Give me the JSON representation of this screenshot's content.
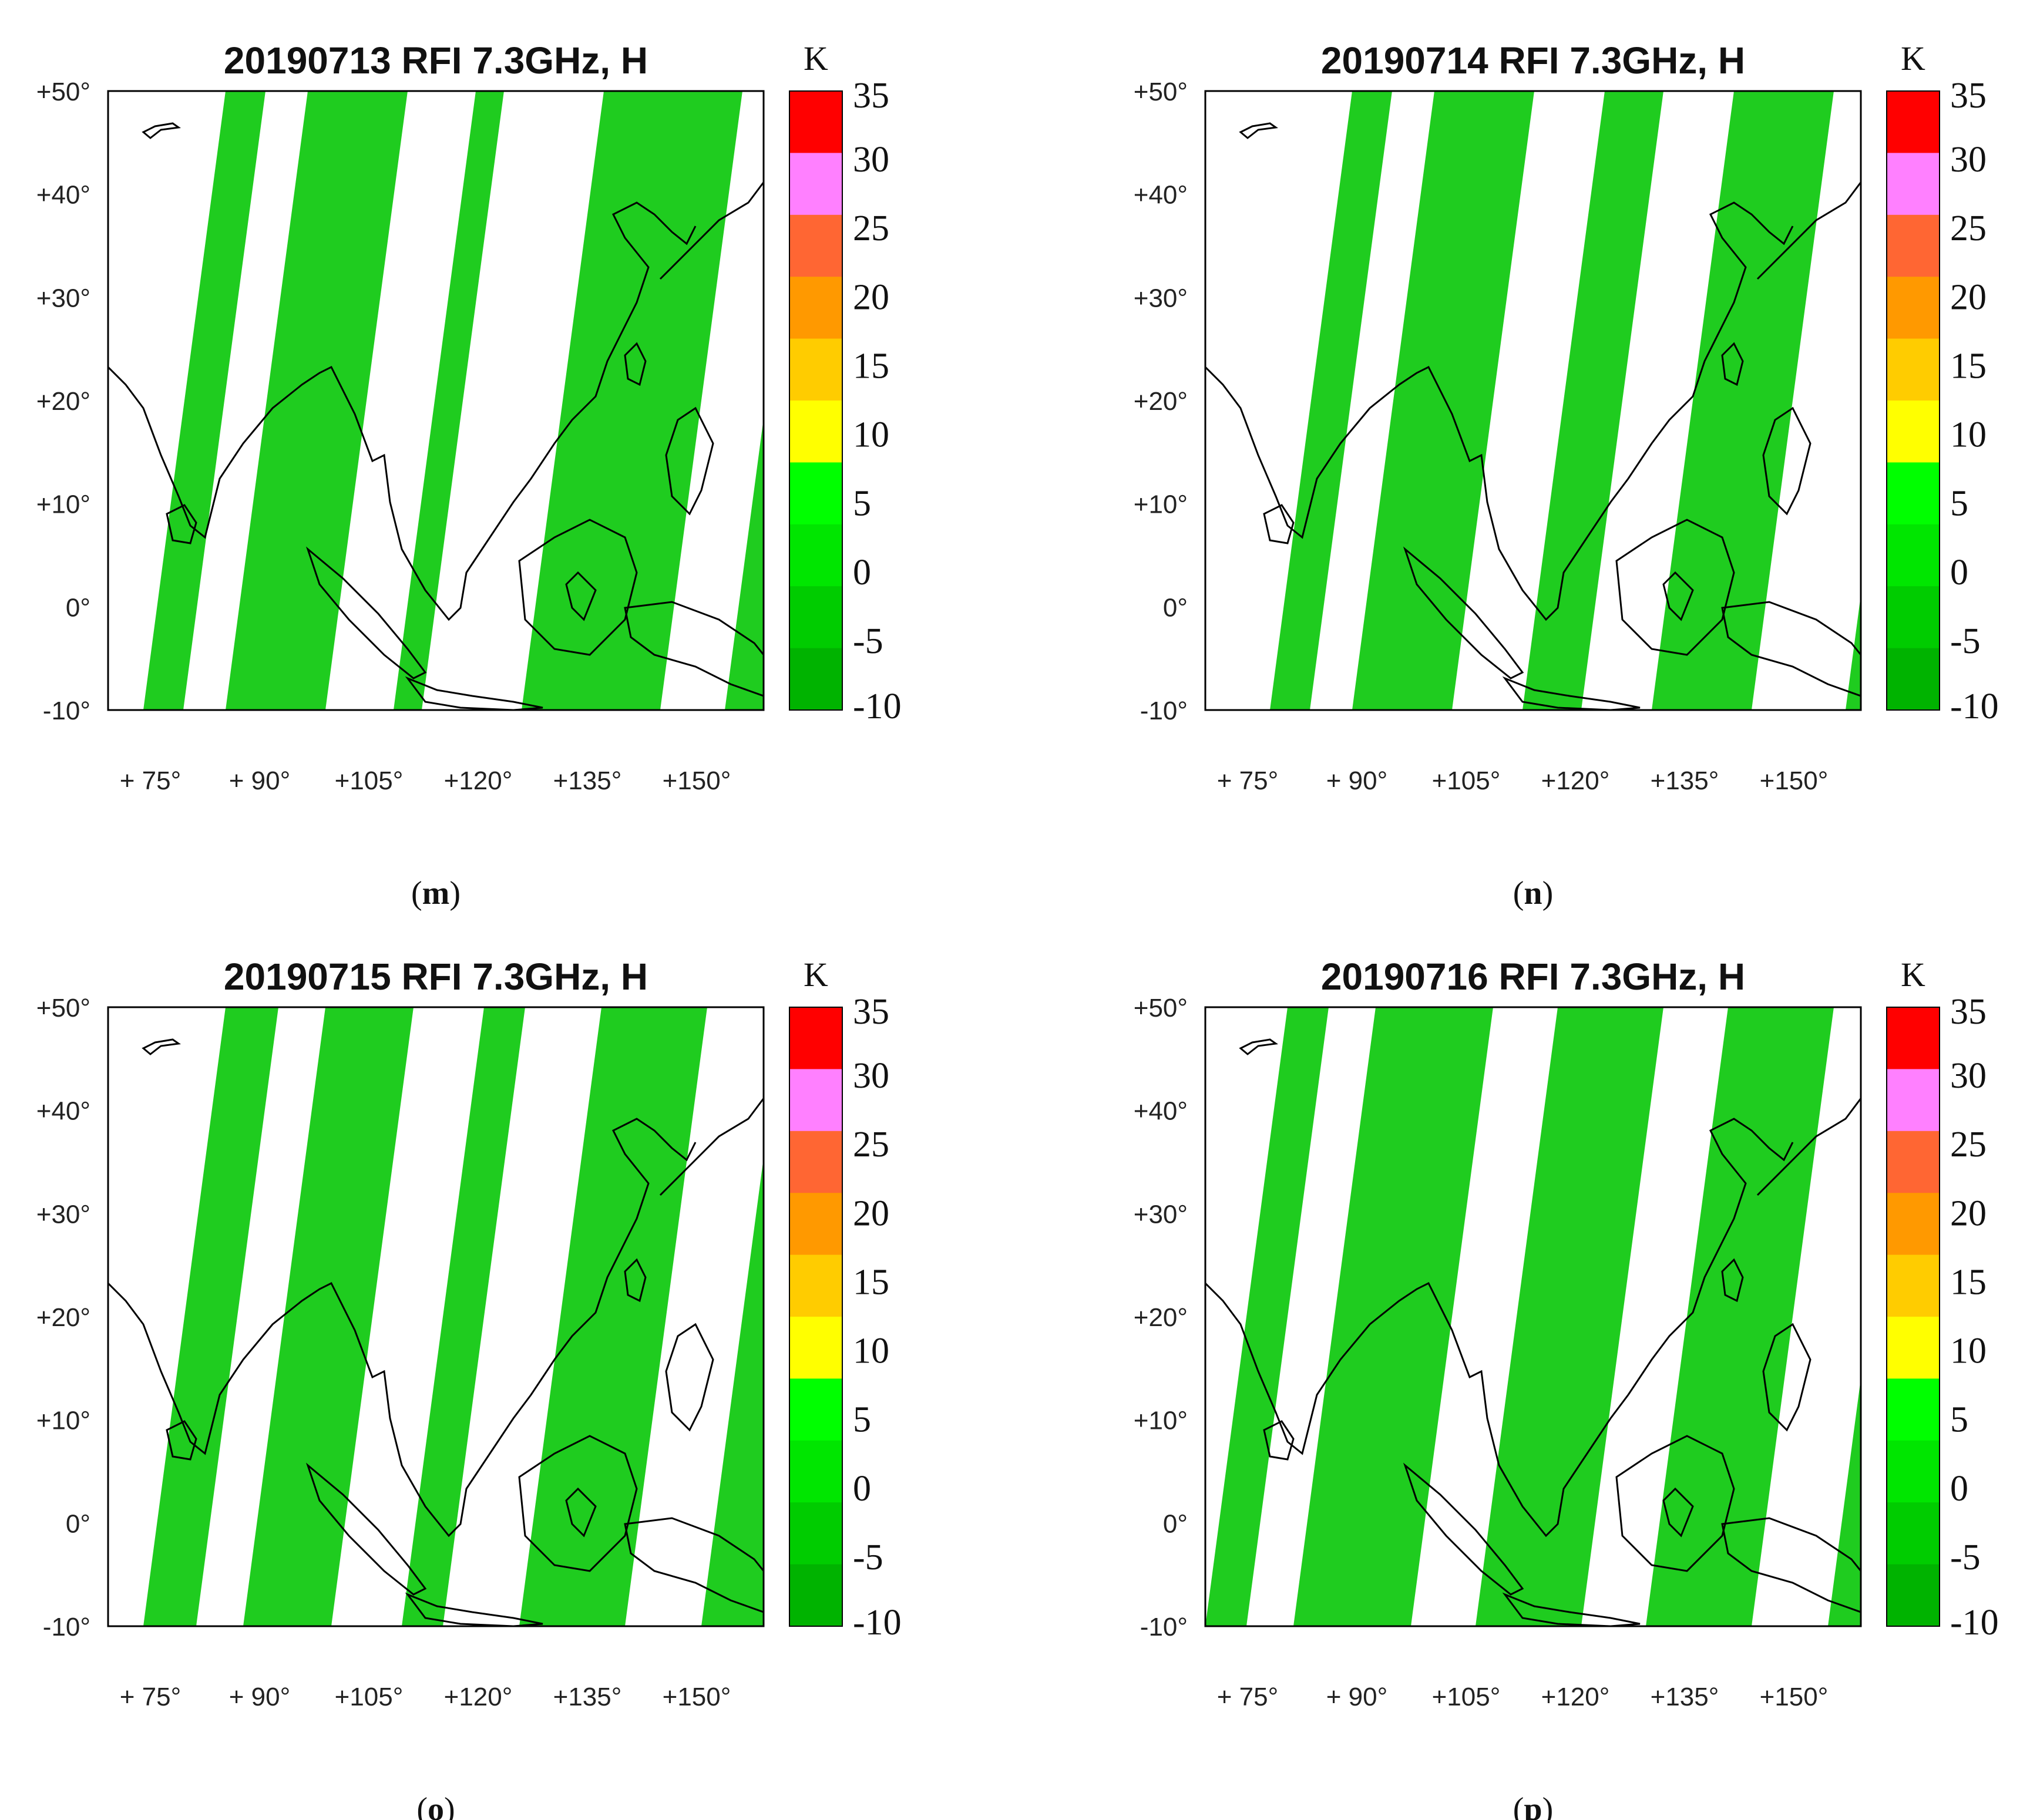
{
  "panels": [
    {
      "title": "20190713 RFI 7.3GHz, H",
      "caption_open": "(",
      "caption_letter": "m",
      "caption_close": ")",
      "swaths": [
        [
          60,
          128
        ],
        [
          200,
          370
        ],
        [
          486,
          534
        ],
        [
          704,
          940
        ],
        [
          1050,
          1160
        ]
      ]
    },
    {
      "title": "20190714 RFI 7.3GHz, H",
      "caption_open": "(",
      "caption_letter": "n",
      "caption_close": ")",
      "swaths": [
        [
          110,
          178
        ],
        [
          250,
          420
        ],
        [
          540,
          640
        ],
        [
          760,
          930
        ],
        [
          1090,
          1160
        ]
      ]
    },
    {
      "title": "20190715 RFI 7.3GHz, H",
      "caption_open": "(",
      "caption_letter": "o",
      "caption_close": ")",
      "swaths": [
        [
          60,
          150
        ],
        [
          230,
          380
        ],
        [
          500,
          570
        ],
        [
          700,
          880
        ],
        [
          1010,
          1160
        ]
      ]
    },
    {
      "title": "20190716 RFI 7.3GHz, H",
      "caption_open": "(",
      "caption_letter": "p",
      "caption_close": ")",
      "swaths": [
        [
          0,
          70
        ],
        [
          150,
          350
        ],
        [
          460,
          640
        ],
        [
          750,
          930
        ],
        [
          1060,
          1160
        ]
      ]
    }
  ],
  "axes": {
    "lat_ticks": [
      "+50°",
      "+40°",
      "+30°",
      "+20°",
      "+10°",
      "0°",
      "-10°"
    ],
    "lon_ticks": [
      "+ 75°",
      "+ 90°",
      "+105°",
      "+120°",
      "+135°",
      "+150°"
    ]
  },
  "colorbar": {
    "unit": "K",
    "labels": [
      "35",
      "30",
      "25",
      "20",
      "15",
      "10",
      "5",
      "0",
      "-5",
      "-10"
    ],
    "colors": [
      "#ff0000",
      "#ff80ff",
      "#ff6633",
      "#ff9900",
      "#ffcc00",
      "#ffff00",
      "#00ff00",
      "#00e600",
      "#00cc00",
      "#00b300"
    ]
  },
  "colors": {
    "valid": "#1fcc1f",
    "nodata": "#ffffff",
    "coast": "#000000"
  }
}
